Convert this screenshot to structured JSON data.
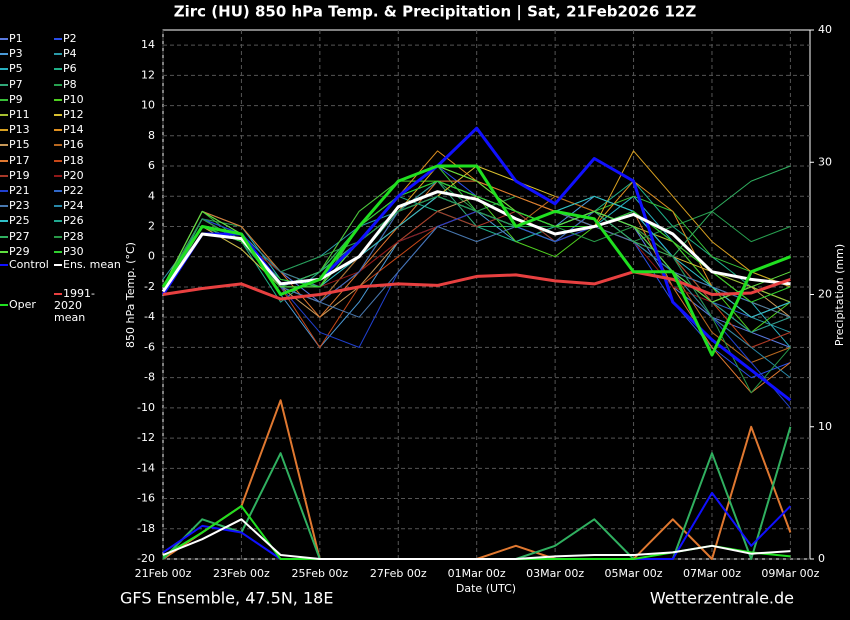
{
  "chart_data": {
    "type": "line",
    "title": "Zirc  (HU)  850 hPa Temp. & Precipitation | Sat, 21Feb2026 12Z",
    "y_label": "850 hPa Temp. (°C)",
    "y2_label": "Precipitation (mm)",
    "x_label": "Date (UTC)",
    "footer_left": "GFS Ensemble, 47.5N, 18E",
    "footer_right": "Wetterzentrale.de",
    "grid": true,
    "x": [
      0,
      1,
      2,
      3,
      4,
      5,
      6,
      7,
      8,
      9,
      10,
      11,
      12,
      13,
      14,
      15,
      16
    ],
    "xlim": [
      0,
      16.5
    ],
    "xticks": [
      {
        "value": 0,
        "label": "21Feb 00z"
      },
      {
        "value": 2,
        "label": "23Feb 00z"
      },
      {
        "value": 4,
        "label": "25Feb 00z"
      },
      {
        "value": 6,
        "label": "27Feb 00z"
      },
      {
        "value": 8,
        "label": "01Mar 00z"
      },
      {
        "value": 10,
        "label": "03Mar 00z"
      },
      {
        "value": 12,
        "label": "05Mar 00z"
      },
      {
        "value": 14,
        "label": "07Mar 00z"
      },
      {
        "value": 16,
        "label": "09Mar 00z"
      }
    ],
    "ylim": [
      -20,
      15
    ],
    "yticks": [
      -20,
      -18,
      -16,
      -14,
      -12,
      -10,
      -8,
      -6,
      -4,
      -2,
      0,
      2,
      4,
      6,
      8,
      10,
      12,
      14
    ],
    "y2lim": [
      0,
      40
    ],
    "y2ticks": [
      0,
      10,
      20,
      30,
      40
    ],
    "series": [
      {
        "name": "P1",
        "color": "#5a7ae0",
        "values": [
          -2,
          2,
          1,
          -1,
          -3,
          0,
          2,
          4,
          3,
          2,
          1,
          3,
          2,
          -2,
          -4,
          -5,
          -6
        ]
      },
      {
        "name": "P2",
        "color": "#2a4ee8",
        "values": [
          -2.5,
          2,
          0.5,
          -2,
          -1,
          3,
          5,
          6,
          4,
          3,
          2,
          3,
          1,
          -3,
          -6,
          -8,
          -7
        ]
      },
      {
        "name": "P3",
        "color": "#4a9ad8",
        "values": [
          -2,
          2.5,
          1.5,
          -2.5,
          -6,
          -3,
          1,
          2,
          3,
          1,
          2,
          4,
          3,
          0,
          -3,
          -5,
          -4
        ]
      },
      {
        "name": "P4",
        "color": "#2a9aa8",
        "values": [
          -1.5,
          2,
          1,
          -1,
          0,
          2,
          3,
          4,
          3,
          2,
          3,
          2,
          1,
          -1,
          -2,
          -4,
          -5
        ]
      },
      {
        "name": "P5",
        "color": "#28b0c0",
        "values": [
          -2,
          3,
          2,
          -1.5,
          -2,
          1,
          3,
          5,
          4,
          3,
          1,
          2,
          4,
          1,
          -2,
          -3,
          -6
        ]
      },
      {
        "name": "P6",
        "color": "#20b088",
        "values": [
          -2.5,
          2.5,
          1,
          -3,
          -1,
          2,
          4,
          3,
          2,
          1,
          2,
          3,
          5,
          2,
          0,
          -2,
          -3
        ]
      },
      {
        "name": "P7",
        "color": "#30a878",
        "values": [
          -2,
          3,
          1.5,
          -2,
          -3,
          0,
          3,
          5,
          2,
          2,
          3,
          4,
          3,
          1,
          -1,
          -2,
          -3
        ]
      },
      {
        "name": "P8",
        "color": "#28a050",
        "values": [
          -2,
          2.5,
          2,
          -1,
          0,
          1,
          4,
          5,
          3,
          4,
          3,
          2,
          1,
          2,
          3,
          1,
          2
        ]
      },
      {
        "name": "P9",
        "color": "#38c038",
        "values": [
          -2,
          3,
          1,
          -2,
          -1,
          2,
          5,
          6,
          3,
          2,
          1,
          3,
          4,
          3,
          0,
          -1,
          -2
        ]
      },
      {
        "name": "P10",
        "color": "#50d020",
        "values": [
          -2,
          2,
          1,
          -2,
          -1,
          3,
          5,
          5,
          4,
          1,
          0,
          2,
          3,
          1,
          -2,
          -5,
          -3
        ]
      },
      {
        "name": "P11",
        "color": "#a8c030",
        "values": [
          -2,
          2,
          1,
          -1,
          -2,
          1,
          3,
          5,
          4,
          3,
          2,
          3,
          2,
          1,
          -1,
          -2,
          -3
        ]
      },
      {
        "name": "P12",
        "color": "#d8c030",
        "values": [
          -2.5,
          2,
          0.5,
          -2,
          -1,
          1,
          3,
          4,
          6,
          5,
          4,
          3,
          2,
          0,
          -1,
          -3,
          -4
        ]
      },
      {
        "name": "P13",
        "color": "#d8a020",
        "values": [
          -2,
          2.5,
          1,
          -2,
          -3,
          -1,
          3,
          6,
          5,
          3,
          2,
          2,
          7,
          4,
          1,
          -1,
          -2
        ]
      },
      {
        "name": "P14",
        "color": "#e09020",
        "values": [
          -2,
          3,
          1.5,
          -1,
          -2,
          2,
          4,
          7,
          5,
          4,
          3,
          2,
          5,
          3,
          -2,
          -4,
          -3
        ]
      },
      {
        "name": "P15",
        "color": "#c89858",
        "values": [
          -2,
          2,
          1,
          -2,
          -4,
          -2,
          1,
          3,
          4,
          3,
          2,
          3,
          1,
          -1,
          -3,
          -2,
          -4
        ]
      },
      {
        "name": "P16",
        "color": "#b86820",
        "values": [
          -2.5,
          2,
          1,
          -2,
          -3,
          0,
          2,
          4,
          3,
          2,
          4,
          3,
          2,
          -1,
          -5,
          -7,
          -6
        ]
      },
      {
        "name": "P17",
        "color": "#e07830",
        "values": [
          -2,
          3,
          2,
          -1,
          -4,
          -1,
          2,
          5,
          5,
          4,
          3,
          2,
          3,
          -2,
          -6,
          -9,
          -7
        ]
      },
      {
        "name": "P18",
        "color": "#c84818",
        "values": [
          -2,
          2.5,
          1,
          -2,
          -6,
          -2,
          0,
          2,
          3,
          2,
          3,
          2,
          1,
          0,
          -3,
          -6,
          -5
        ]
      },
      {
        "name": "P19",
        "color": "#a83828",
        "values": [
          -2,
          2,
          1,
          -2,
          -3,
          -1,
          1,
          3,
          2,
          3,
          1,
          3,
          2,
          -1,
          -4,
          -6,
          -5
        ]
      },
      {
        "name": "P20",
        "color": "#901818",
        "values": [
          -2,
          2,
          1,
          -1,
          -2,
          -1,
          1,
          2,
          3,
          2,
          1,
          2,
          1,
          -2,
          -3,
          -5,
          -4
        ]
      },
      {
        "name": "P21",
        "color": "#2040d0",
        "values": [
          -2,
          2.5,
          1.5,
          -2,
          -5,
          -6,
          -1,
          2,
          3,
          2,
          1,
          2,
          3,
          0,
          -4,
          -7,
          -10
        ]
      },
      {
        "name": "P22",
        "color": "#3068c8",
        "values": [
          -2,
          2,
          1,
          -2,
          -3,
          -1,
          3,
          4,
          3,
          2,
          1,
          3,
          2,
          -1,
          -3,
          -4,
          -3
        ]
      },
      {
        "name": "P23",
        "color": "#4878b0",
        "values": [
          -2.5,
          2,
          1,
          -2,
          -3,
          -4,
          -1,
          2,
          1,
          2,
          3,
          2,
          1,
          -1,
          -2,
          -3,
          -4
        ]
      },
      {
        "name": "P24",
        "color": "#2888a8",
        "values": [
          -2,
          2,
          1.5,
          -1,
          -2,
          1,
          3,
          5,
          4,
          3,
          2,
          3,
          1,
          -1,
          -4,
          -6,
          -8
        ]
      },
      {
        "name": "P25",
        "color": "#30c0c8",
        "values": [
          -2,
          2.5,
          1,
          -2,
          -2,
          0,
          2,
          4,
          3,
          2,
          3,
          4,
          3,
          0,
          -2,
          -4,
          -3
        ]
      },
      {
        "name": "P26",
        "color": "#20a890",
        "values": [
          -2,
          2,
          1,
          -2,
          -1,
          1,
          3,
          4,
          3,
          2,
          2,
          3,
          2,
          -1,
          -3,
          -5,
          -4
        ]
      },
      {
        "name": "P27",
        "color": "#30b060",
        "values": [
          -2,
          3,
          1.5,
          -2,
          -1,
          2,
          4,
          5,
          4,
          3,
          2,
          3,
          1,
          0,
          3,
          5,
          6
        ]
      },
      {
        "name": "P28",
        "color": "#289848",
        "values": [
          -2,
          2.5,
          1,
          -2,
          -2,
          1,
          3,
          4,
          3,
          2,
          2,
          1,
          2,
          0,
          -4,
          -9,
          -6
        ]
      },
      {
        "name": "P29",
        "color": "#60e040",
        "values": [
          -2,
          3,
          1.5,
          -2,
          -2,
          1,
          4,
          6,
          5,
          3,
          2,
          3,
          2,
          -1,
          -3,
          -2,
          -1
        ]
      },
      {
        "name": "P30",
        "color": "#30d030",
        "values": [
          -2,
          2,
          1,
          -1.5,
          -2,
          2,
          4,
          5,
          4,
          3,
          2,
          2,
          3,
          1,
          -1,
          -3,
          -2
        ]
      },
      {
        "name": "Control",
        "color": "#1010ff",
        "values": [
          -2.5,
          1.5,
          1.5,
          -1.8,
          -1.5,
          1,
          4,
          6,
          8.5,
          5,
          3.5,
          6.5,
          5,
          -3,
          -5.5,
          -7.5,
          -9.5
        ]
      },
      {
        "name": "Ens. mean",
        "color": "#ffffff",
        "values": [
          -2.3,
          1.5,
          1.2,
          -1.8,
          -1.5,
          0,
          3.3,
          4.3,
          3.8,
          2.5,
          1.5,
          2,
          2.8,
          1.5,
          -1,
          -1.5,
          -1.8
        ]
      },
      {
        "name": "1991-2020 mean",
        "color": "#e84040",
        "values": [
          -2.5,
          -2.1,
          -1.8,
          -2.8,
          -2.5,
          -2,
          -1.8,
          -1.9,
          -1.3,
          -1.2,
          -1.6,
          -1.8,
          -1,
          -1.5,
          -2.5,
          -2.4,
          -1.5
        ]
      },
      {
        "name": "Oper",
        "color": "#20e020",
        "values": [
          -2,
          2,
          1.5,
          -2.5,
          -1.5,
          2,
          5,
          6,
          6,
          2,
          3,
          2.5,
          -1,
          -1,
          -6.5,
          -1,
          0
        ]
      }
    ],
    "precipitation": [
      {
        "name": "P17",
        "color": "#e07830",
        "axis": "y2",
        "values": [
          0,
          2,
          4,
          12,
          0,
          0,
          0,
          0,
          0,
          1,
          0,
          0,
          0,
          3,
          0,
          10,
          2
        ]
      },
      {
        "name": "P27",
        "color": "#30b060",
        "axis": "y2",
        "values": [
          0,
          3,
          2,
          8,
          0,
          0,
          0,
          0,
          0,
          0,
          1,
          3,
          0,
          0,
          8,
          0,
          10
        ]
      },
      {
        "name": "Control",
        "color": "#1010ff",
        "axis": "y2",
        "values": [
          0.5,
          2.5,
          2,
          0,
          0,
          0,
          0,
          0,
          0,
          0,
          0,
          0,
          0,
          0,
          5,
          1,
          4
        ]
      },
      {
        "name": "Oper",
        "color": "#20e020",
        "axis": "y2",
        "values": [
          0.2,
          2,
          4,
          0,
          0,
          0,
          0,
          0,
          0,
          0,
          0,
          0,
          0,
          0.5,
          1,
          0.5,
          0.2
        ]
      },
      {
        "name": "Ens. mean",
        "color": "#ffffff",
        "axis": "y2",
        "values": [
          0.3,
          1.5,
          3,
          0.3,
          0,
          0,
          0,
          0,
          0,
          0,
          0.2,
          0.3,
          0.3,
          0.5,
          1,
          0.4,
          0.6
        ]
      }
    ]
  }
}
